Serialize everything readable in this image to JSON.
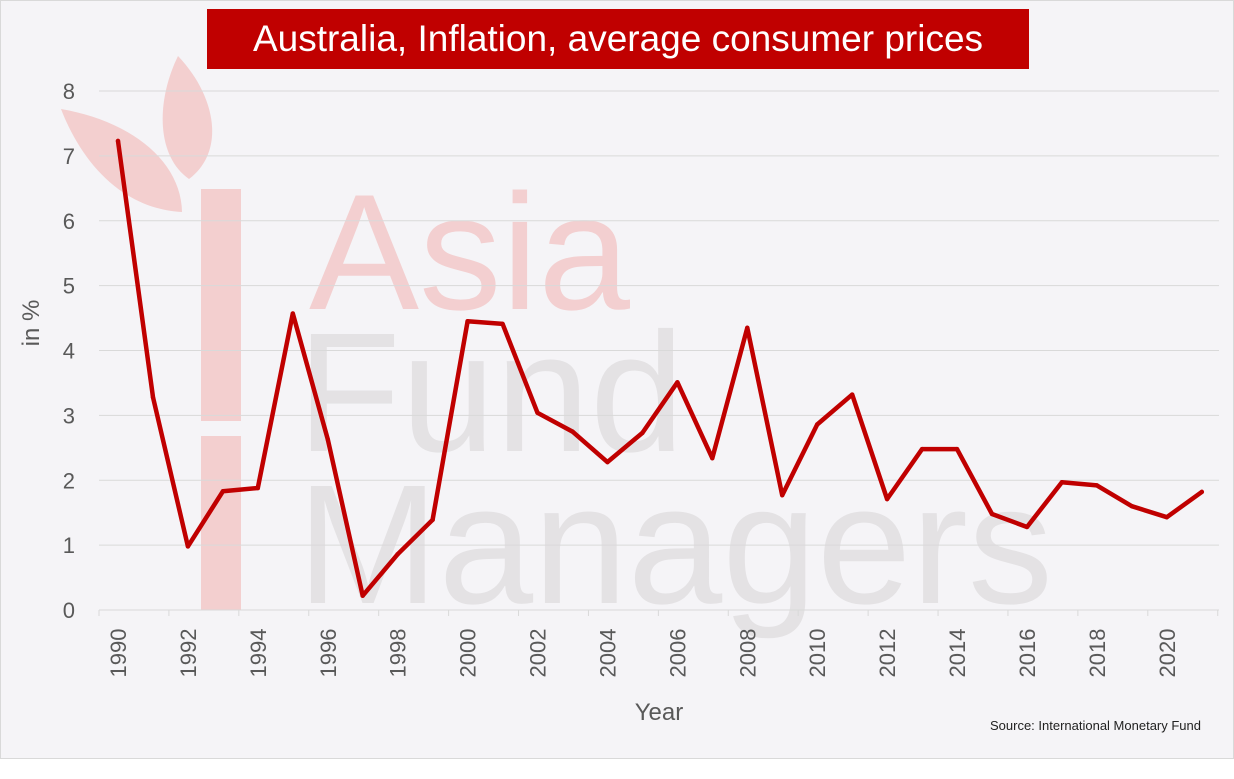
{
  "title": "Australia, Inflation, average consumer prices",
  "source_note": "Source: International Monetary Fund",
  "watermark": {
    "lines": [
      "Asia",
      "Fund",
      "Managers"
    ],
    "type": "logo-watermark"
  },
  "colors": {
    "line": "#c00000",
    "title_bg": "#c00000",
    "title_text": "#ffffff",
    "background": "#f5f4f7",
    "gridline": "#d9d9d9",
    "tick_text": "#595959"
  },
  "chart_data": {
    "type": "line",
    "title": "Australia, Inflation, average consumer prices",
    "xlabel": "Year",
    "ylabel": "in %",
    "ylim": [
      0,
      8
    ],
    "yticks": [
      0,
      1,
      2,
      3,
      4,
      5,
      6,
      7,
      8
    ],
    "xlim": [
      1990,
      2021
    ],
    "xticks": [
      1990,
      1992,
      1994,
      1996,
      1998,
      2000,
      2002,
      2004,
      2006,
      2008,
      2010,
      2012,
      2014,
      2016,
      2018,
      2020
    ],
    "grid": true,
    "legend": "none",
    "x": [
      1990,
      1991,
      1992,
      1993,
      1994,
      1995,
      1996,
      1997,
      1998,
      1999,
      2000,
      2001,
      2002,
      2003,
      2004,
      2005,
      2006,
      2007,
      2008,
      2009,
      2010,
      2011,
      2012,
      2013,
      2014,
      2015,
      2016,
      2017,
      2018,
      2019,
      2020,
      2021
    ],
    "series": [
      {
        "values": [
          7.23,
          3.28,
          0.98,
          1.83,
          1.88,
          4.57,
          2.63,
          0.22,
          0.86,
          1.39,
          4.45,
          4.41,
          3.04,
          2.75,
          2.28,
          2.73,
          3.51,
          2.34,
          4.35,
          1.77,
          2.86,
          3.32,
          1.71,
          2.48,
          2.48,
          1.48,
          1.28,
          1.97,
          1.92,
          1.6,
          1.43,
          1.82
        ]
      }
    ]
  }
}
